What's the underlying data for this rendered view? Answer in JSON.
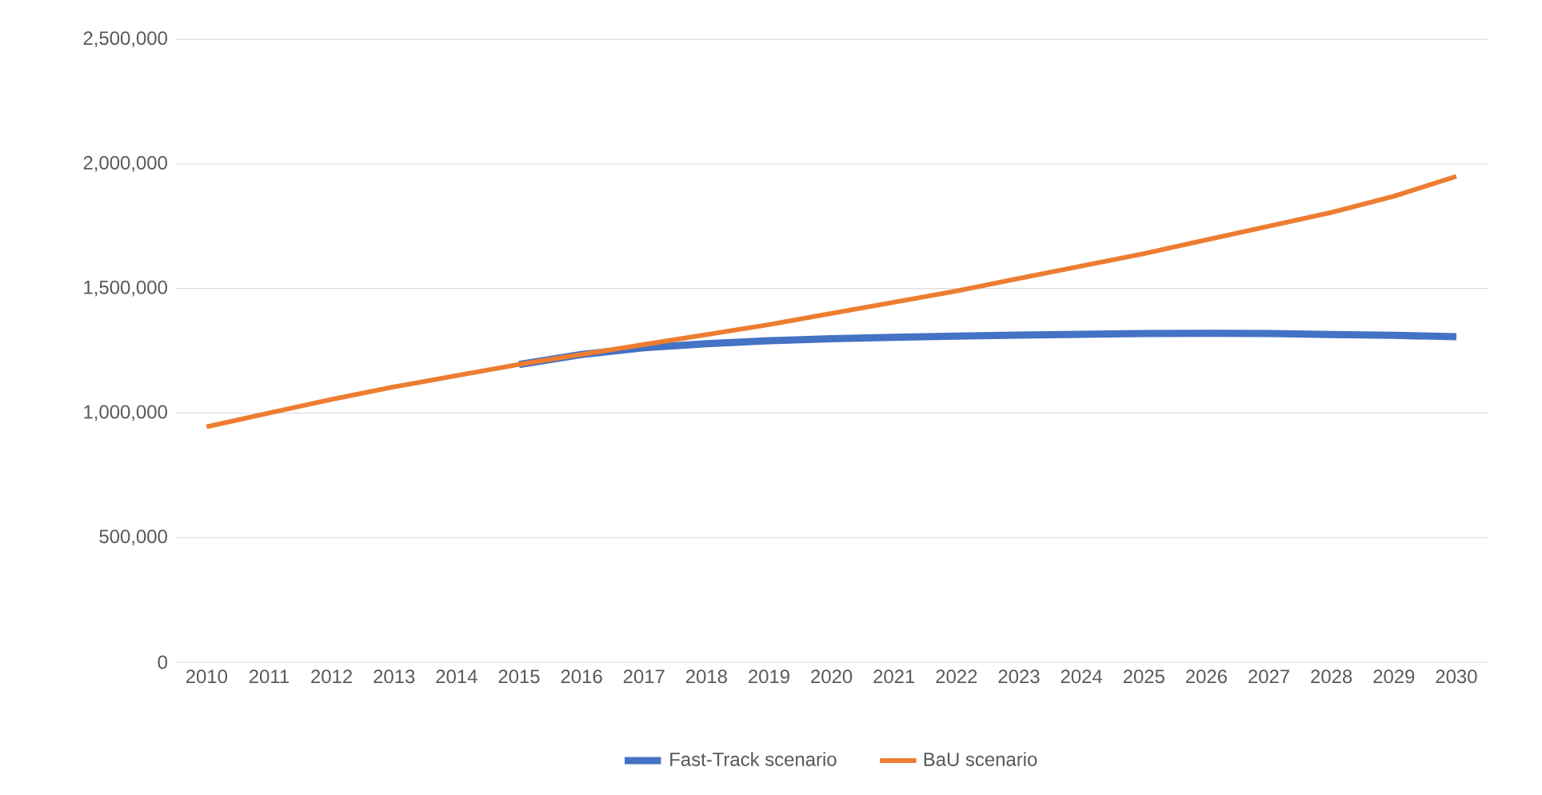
{
  "chart_data": {
    "type": "line",
    "categories": [
      "2010",
      "2011",
      "2012",
      "2013",
      "2014",
      "2015",
      "2016",
      "2017",
      "2018",
      "2019",
      "2020",
      "2021",
      "2022",
      "2023",
      "2024",
      "2025",
      "2026",
      "2027",
      "2028",
      "2029",
      "2030"
    ],
    "series": [
      {
        "name": "Fast-Track scenario",
        "color": "#4472c4",
        "values": [
          null,
          null,
          null,
          null,
          null,
          1195000,
          1235000,
          1262000,
          1278000,
          1290000,
          1298000,
          1304000,
          1309000,
          1313000,
          1316000,
          1319000,
          1320000,
          1319000,
          1315000,
          1312000,
          1306000
        ]
      },
      {
        "name": "BaU scenario",
        "color": "#ed7d31",
        "values": [
          945000,
          1000000,
          1055000,
          1105000,
          1150000,
          1195000,
          1235000,
          1275000,
          1315000,
          1355000,
          1400000,
          1445000,
          1490000,
          1540000,
          1590000,
          1640000,
          1695000,
          1750000,
          1805000,
          1870000,
          1950000
        ]
      }
    ],
    "ylim": [
      0,
      2500000
    ],
    "yticks": [
      {
        "value": 0,
        "label": "0"
      },
      {
        "value": 500000,
        "label": "500,000"
      },
      {
        "value": 1000000,
        "label": "1,000,000"
      },
      {
        "value": 1500000,
        "label": "1,500,000"
      },
      {
        "value": 2000000,
        "label": "2,000,000"
      },
      {
        "value": 2500000,
        "label": "2,500,000"
      }
    ],
    "grid": "y",
    "legend": "bottom",
    "marker": "none",
    "line_style": "solid"
  }
}
